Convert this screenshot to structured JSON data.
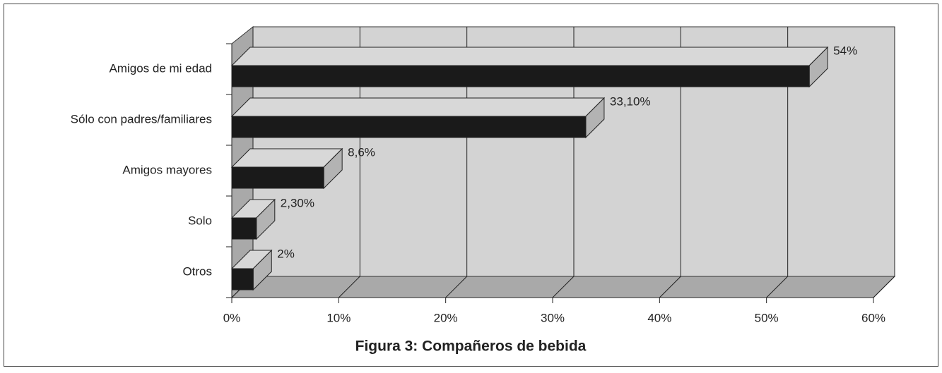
{
  "chart_data": {
    "type": "bar",
    "orientation": "horizontal",
    "title": "Figura 3: Compañeros de bebida",
    "categories": [
      "Amigos de mi edad",
      "Sólo con padres/familiares",
      "Amigos mayores",
      "Solo",
      "Otros"
    ],
    "values": [
      54,
      33.1,
      8.6,
      2.3,
      2
    ],
    "value_labels": [
      "54%",
      "33,10%",
      "8,6%",
      "2,30%",
      "2%"
    ],
    "color": "#1a1a1a",
    "xlim": [
      0,
      60
    ],
    "xticks": [
      {
        "value": 0,
        "label": "0%"
      },
      {
        "value": 10,
        "label": "10%"
      },
      {
        "value": 20,
        "label": "20%"
      },
      {
        "value": 30,
        "label": "30%"
      },
      {
        "value": 40,
        "label": "40%"
      },
      {
        "value": 50,
        "label": "50%"
      },
      {
        "value": 60,
        "label": "60%"
      }
    ],
    "grid": true
  }
}
